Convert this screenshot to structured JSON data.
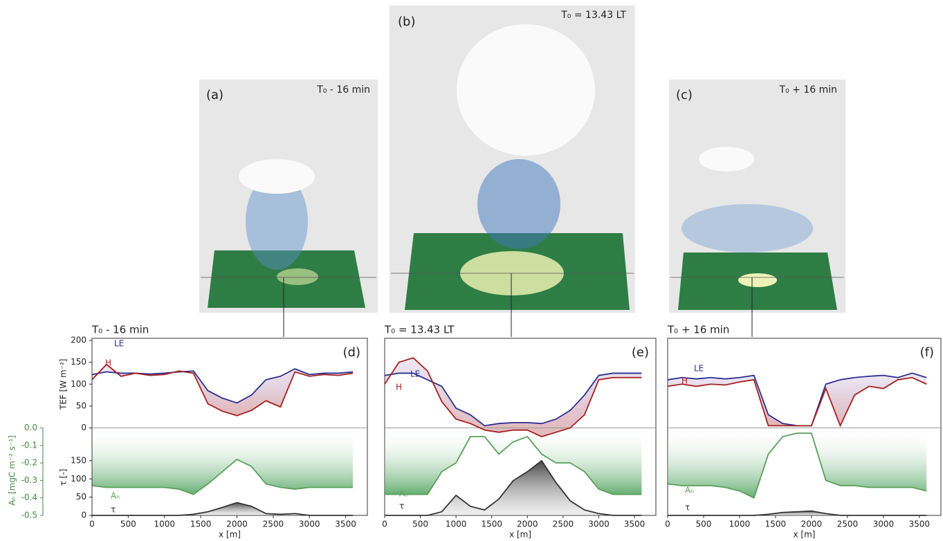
{
  "renders": [
    {
      "label": "(a)",
      "time": "T₀ - 16 min"
    },
    {
      "label": "(b)",
      "time": "T₀ = 13.43 LT"
    },
    {
      "label": "(c)",
      "time": "T₀ + 16 min"
    }
  ],
  "chart_data": [
    {
      "type": "line",
      "title": "T₀ - 16 min",
      "annotation": "(d)",
      "xlabel": "x [m]",
      "ylabel": "TEF [W m⁻²]",
      "y2label": "τ [-]",
      "y3label": "Aₙ [mgC m⁻² s⁻¹]",
      "x": [
        0,
        200,
        400,
        600,
        800,
        1000,
        1200,
        1400,
        1600,
        1800,
        2000,
        2200,
        2400,
        2600,
        2800,
        3000,
        3200,
        3400,
        3600
      ],
      "xlim": [
        0,
        3800
      ],
      "xticks": [
        0,
        500,
        1000,
        1500,
        2000,
        2500,
        3000,
        3500
      ],
      "ylim": [
        -200,
        200
      ],
      "yticks": [
        0,
        50,
        100,
        150,
        200
      ],
      "y2lim": [
        0,
        480
      ],
      "y2ticks": [
        0,
        50,
        100,
        150
      ],
      "y3lim": [
        -0.5,
        0.5
      ],
      "y3ticks": [
        {
          "value": 0,
          "label": "0.0"
        },
        -0.1,
        -0.2,
        -0.3,
        -0.4,
        -0.5
      ],
      "series": [
        {
          "name": "LE",
          "color": "#2b2e8f",
          "values": [
            122,
            128,
            125,
            125,
            123,
            125,
            128,
            130,
            85,
            68,
            57,
            75,
            110,
            118,
            135,
            122,
            125,
            125,
            128
          ]
        },
        {
          "name": "H",
          "color": "#a51f1f",
          "values": [
            110,
            145,
            118,
            125,
            120,
            122,
            130,
            125,
            55,
            38,
            28,
            40,
            62,
            48,
            128,
            118,
            122,
            120,
            125
          ]
        },
        {
          "name": "Aₙ",
          "color": "#5aa05a",
          "axis": "y3",
          "values": [
            -0.33,
            -0.34,
            -0.34,
            -0.34,
            -0.34,
            -0.34,
            -0.35,
            -0.38,
            -0.32,
            -0.25,
            -0.18,
            -0.22,
            -0.32,
            -0.34,
            -0.35,
            -0.34,
            -0.34,
            -0.34,
            -0.34
          ]
        },
        {
          "name": "τ",
          "color": "#333333",
          "axis": "y2",
          "values": [
            0,
            0,
            0,
            0,
            0,
            0,
            0,
            3,
            10,
            22,
            35,
            25,
            5,
            3,
            5,
            0,
            0,
            0,
            0
          ]
        }
      ]
    },
    {
      "type": "line",
      "title": "T₀ = 13.43 LT",
      "annotation": "(e)",
      "xlabel": "x [m]",
      "x": [
        0,
        200,
        400,
        600,
        800,
        1000,
        1200,
        1400,
        1600,
        1800,
        2000,
        2200,
        2400,
        2600,
        2800,
        3000,
        3200,
        3400,
        3600
      ],
      "xlim": [
        0,
        3800
      ],
      "xticks": [
        0,
        500,
        1000,
        1500,
        2000,
        2500,
        3000,
        3500
      ],
      "ylim": [
        -200,
        200
      ],
      "y2lim": [
        0,
        480
      ],
      "y3lim": [
        -0.5,
        0.5
      ],
      "series": [
        {
          "name": "LE",
          "color": "#2b2e8f",
          "values": [
            120,
            125,
            125,
            110,
            95,
            45,
            30,
            5,
            10,
            12,
            12,
            10,
            20,
            40,
            75,
            120,
            125,
            125,
            125
          ]
        },
        {
          "name": "H",
          "color": "#a51f1f",
          "values": [
            100,
            150,
            160,
            130,
            60,
            20,
            10,
            -5,
            -10,
            -5,
            -5,
            -20,
            -10,
            0,
            30,
            110,
            115,
            115,
            115
          ]
        },
        {
          "name": "Aₙ",
          "color": "#5aa05a",
          "axis": "y3",
          "values": [
            -0.38,
            -0.38,
            -0.38,
            -0.38,
            -0.25,
            -0.2,
            -0.05,
            -0.05,
            -0.15,
            -0.08,
            -0.05,
            -0.15,
            -0.2,
            -0.2,
            -0.25,
            -0.35,
            -0.38,
            -0.38,
            -0.38
          ]
        },
        {
          "name": "τ",
          "color": "#333333",
          "axis": "y2",
          "values": [
            0,
            0,
            0,
            0,
            10,
            55,
            25,
            15,
            45,
            95,
            120,
            150,
            90,
            40,
            15,
            5,
            0,
            0,
            0
          ]
        }
      ]
    },
    {
      "type": "line",
      "title": "T₀ + 16 min",
      "annotation": "(f)",
      "xlabel": "x [m]",
      "x": [
        0,
        200,
        400,
        600,
        800,
        1000,
        1200,
        1400,
        1600,
        1800,
        2000,
        2200,
        2400,
        2600,
        2800,
        3000,
        3200,
        3400,
        3600
      ],
      "xlim": [
        0,
        3800
      ],
      "xticks": [
        0,
        500,
        1000,
        1500,
        2000,
        2500,
        3000,
        3500
      ],
      "ylim": [
        -200,
        200
      ],
      "y2lim": [
        0,
        480
      ],
      "y3lim": [
        -0.5,
        0.5
      ],
      "series": [
        {
          "name": "LE",
          "color": "#2b2e8f",
          "values": [
            110,
            115,
            112,
            115,
            112,
            115,
            120,
            30,
            10,
            5,
            5,
            100,
            110,
            115,
            118,
            120,
            115,
            125,
            115
          ]
        },
        {
          "name": "H",
          "color": "#a51f1f",
          "values": [
            95,
            100,
            95,
            100,
            98,
            105,
            110,
            5,
            5,
            5,
            5,
            90,
            5,
            75,
            95,
            90,
            110,
            115,
            100
          ]
        },
        {
          "name": "Aₙ",
          "color": "#5aa05a",
          "axis": "y3",
          "values": [
            -0.32,
            -0.33,
            -0.33,
            -0.33,
            -0.34,
            -0.36,
            -0.4,
            -0.15,
            -0.05,
            -0.03,
            -0.03,
            -0.3,
            -0.33,
            -0.33,
            -0.34,
            -0.34,
            -0.34,
            -0.34,
            -0.36
          ]
        },
        {
          "name": "τ",
          "color": "#333333",
          "axis": "y2",
          "values": [
            0,
            0,
            0,
            0,
            0,
            0,
            0,
            3,
            8,
            10,
            12,
            5,
            0,
            0,
            0,
            0,
            0,
            0,
            0
          ]
        }
      ]
    }
  ]
}
